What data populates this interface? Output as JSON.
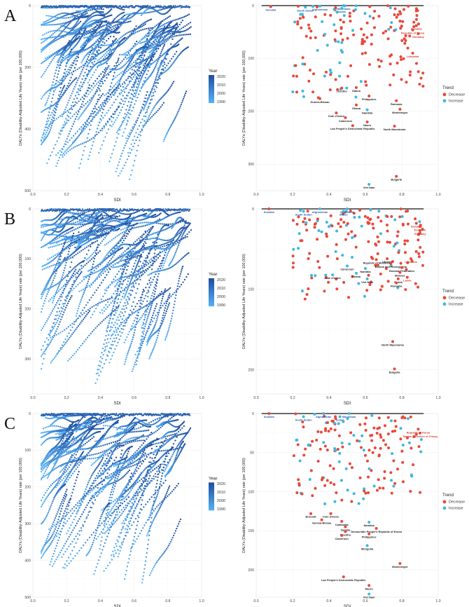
{
  "panels": [
    {
      "letter": "A",
      "left": {
        "ylim": [
          600,
          0
        ],
        "xlim": [
          0,
          1
        ],
        "yticks": [
          "0",
          "200",
          "400",
          "600"
        ],
        "xticks": [
          "0.0",
          "0.2",
          "0.4",
          "0.6",
          "0.8",
          "1.0"
        ]
      },
      "right": {
        "ylim": [
          350,
          0
        ],
        "xlim": [
          0,
          1
        ],
        "yticks": [
          "0",
          "100",
          "200",
          "300"
        ],
        "xticks": [
          "0.0",
          "0.2",
          "0.4",
          "0.6",
          "0.8",
          "1.0"
        ],
        "labels": [
          {
            "text": "Mauritania",
            "x": 0.48,
            "y": -1,
            "trend": "Increase"
          },
          {
            "text": "Afghanistan",
            "x": 0.35,
            "y": 1,
            "trend": "Increase"
          },
          {
            "text": "Somalia",
            "x": 0.08,
            "y": 2,
            "trend": "Decrease"
          },
          {
            "text": "South Sudan",
            "x": 0.27,
            "y": 3,
            "trend": "Increase"
          },
          {
            "text": "Sudan",
            "x": 0.47,
            "y": 5,
            "trend": "Increase"
          },
          {
            "text": "Slovakia",
            "x": 0.88,
            "y": 38,
            "trend": "Decrease"
          },
          {
            "text": "Republic of Korea",
            "x": 0.86,
            "y": 46,
            "trend": "Decrease"
          },
          {
            "text": "Germany",
            "x": 0.89,
            "y": 53,
            "trend": "Decrease"
          },
          {
            "text": "Lithuania",
            "x": 0.86,
            "y": 90,
            "trend": "Decrease"
          },
          {
            "text": "Lesotho",
            "x": 0.47,
            "y": 156,
            "trend": "Decrease"
          },
          {
            "text": "Gabon",
            "x": 0.55,
            "y": 155,
            "trend": "Decrease"
          },
          {
            "text": "Philippines",
            "x": 0.62,
            "y": 171,
            "trend": "Decrease"
          },
          {
            "text": "Guinea-Bissau",
            "x": 0.35,
            "y": 176,
            "trend": "Decrease"
          },
          {
            "text": "Romania",
            "x": 0.77,
            "y": 180,
            "trend": "Decrease"
          },
          {
            "text": "Ghana",
            "x": 0.55,
            "y": 188,
            "trend": "Decrease"
          },
          {
            "text": "Namibia",
            "x": 0.61,
            "y": 197,
            "trend": "Increase"
          },
          {
            "text": "Montenegro",
            "x": 0.79,
            "y": 196,
            "trend": "Decrease"
          },
          {
            "text": "Cote d'Ivoire",
            "x": 0.44,
            "y": 203,
            "trend": "Decrease"
          },
          {
            "text": "Cameroon",
            "x": 0.49,
            "y": 212,
            "trend": "Decrease"
          },
          {
            "text": "Nauru",
            "x": 0.61,
            "y": 220,
            "trend": "Decrease"
          },
          {
            "text": "Lao People's Democratic Republic",
            "x": 0.53,
            "y": 227,
            "trend": "Decrease"
          },
          {
            "text": "North Macedonia",
            "x": 0.76,
            "y": 228,
            "trend": "Decrease"
          },
          {
            "text": "Bulgaria",
            "x": 0.77,
            "y": 323,
            "trend": "Decrease"
          },
          {
            "text": "Viet Nam",
            "x": 0.62,
            "y": 338,
            "trend": "Increase"
          }
        ]
      }
    },
    {
      "letter": "B",
      "left": {
        "ylim": [
          370,
          0
        ],
        "xlim": [
          0,
          1
        ],
        "yticks": [
          "0",
          "100",
          "200",
          "300"
        ],
        "xticks": [
          "0.0",
          "0.2",
          "0.4",
          "0.6",
          "0.8",
          "1.0"
        ]
      },
      "right": {
        "ylim": [
          230,
          0
        ],
        "xlim": [
          0,
          1
        ],
        "yticks": [
          "0",
          "100",
          "200"
        ],
        "xticks": [
          "0.0",
          "0.2",
          "0.4",
          "0.6",
          "0.8",
          "1.0"
        ],
        "labels": [
          {
            "text": "Somalia",
            "x": 0.07,
            "y": -2,
            "trend": "Decrease"
          },
          {
            "text": "Afghanistan",
            "x": 0.35,
            "y": -1,
            "trend": "Increase"
          },
          {
            "text": "Mauritania",
            "x": 0.5,
            "y": -2,
            "trend": "Increase"
          },
          {
            "text": "South Sudan",
            "x": 0.26,
            "y": 3,
            "trend": "Increase"
          },
          {
            "text": "Sudan",
            "x": 0.48,
            "y": 3,
            "trend": "Increase"
          },
          {
            "text": "Slovakia",
            "x": 0.88,
            "y": 18,
            "trend": "Decrease"
          },
          {
            "text": "Denmark",
            "x": 0.9,
            "y": 22,
            "trend": "Decrease"
          },
          {
            "text": "Germany",
            "x": 0.9,
            "y": 27,
            "trend": "Decrease"
          },
          {
            "text": "Republic of Moldova",
            "x": 0.66,
            "y": 63,
            "trend": "Decrease"
          },
          {
            "text": "Ukraine",
            "x": 0.72,
            "y": 62,
            "trend": "Decrease"
          },
          {
            "text": "Lithuania",
            "x": 0.85,
            "y": 62,
            "trend": "Decrease"
          },
          {
            "text": "Bosnia and Herzegovina",
            "x": 0.74,
            "y": 68,
            "trend": "Decrease"
          },
          {
            "text": "Cameroon",
            "x": 0.5,
            "y": 71,
            "trend": "Increase"
          },
          {
            "text": "Namibia",
            "x": 0.6,
            "y": 74,
            "trend": "Increase"
          },
          {
            "text": "Russian Federation",
            "x": 0.8,
            "y": 73,
            "trend": "Decrease"
          },
          {
            "text": "Belarus",
            "x": 0.79,
            "y": 79,
            "trend": "Decrease"
          },
          {
            "text": "Ghana",
            "x": 0.55,
            "y": 80,
            "trend": "Increase"
          },
          {
            "text": "Cote d'Ivoire",
            "x": 0.42,
            "y": 82,
            "trend": "Increase"
          },
          {
            "text": "Latvia",
            "x": 0.83,
            "y": 85,
            "trend": "Decrease"
          },
          {
            "text": "Viet Nam",
            "x": 0.61,
            "y": 87,
            "trend": "Increase"
          },
          {
            "text": "Serbia",
            "x": 0.78,
            "y": 87,
            "trend": "Decrease"
          },
          {
            "text": "Romania",
            "x": 0.77,
            "y": 92,
            "trend": "Decrease"
          },
          {
            "text": "North Macedonia",
            "x": 0.75,
            "y": 165,
            "trend": "Decrease"
          },
          {
            "text": "Bulgaria",
            "x": 0.76,
            "y": 199,
            "trend": "Decrease"
          }
        ]
      }
    },
    {
      "letter": "C",
      "left": {
        "ylim": [
          500,
          0
        ],
        "xlim": [
          0,
          1
        ],
        "yticks": [
          "0",
          "100",
          "200",
          "300",
          "400",
          "500"
        ],
        "xticks": [
          "0.0",
          "0.2",
          "0.4",
          "0.6",
          "0.8",
          "1.0"
        ]
      },
      "right": {
        "ylim": [
          235,
          0
        ],
        "xlim": [
          0,
          1
        ],
        "yticks": [
          "0",
          "50",
          "100",
          "150",
          "200"
        ],
        "xticks": [
          "0.0",
          "0.2",
          "0.4",
          "0.6",
          "0.8",
          "1.0"
        ],
        "labels": [
          {
            "text": "Somalia",
            "x": 0.07,
            "y": -1,
            "trend": "Decrease"
          },
          {
            "text": "Afghanistan",
            "x": 0.37,
            "y": 0,
            "trend": "Increase"
          },
          {
            "text": "Mauritania",
            "x": 0.51,
            "y": -1,
            "trend": "Increase"
          },
          {
            "text": "South Sudan",
            "x": 0.26,
            "y": 4,
            "trend": "Increase"
          },
          {
            "text": "Sudan",
            "x": 0.46,
            "y": 4,
            "trend": "Increase"
          },
          {
            "text": "Republic of Korea",
            "x": 0.89,
            "y": 20,
            "trend": "Decrease"
          },
          {
            "text": "Taiwan (Province of China)",
            "x": 0.9,
            "y": 25,
            "trend": "Decrease"
          },
          {
            "text": "Burundi",
            "x": 0.3,
            "y": 128,
            "trend": "Decrease"
          },
          {
            "text": "Cote d'Ivoire",
            "x": 0.41,
            "y": 128,
            "trend": "Decrease"
          },
          {
            "text": "Guinea-Bissau",
            "x": 0.36,
            "y": 136,
            "trend": "Decrease"
          },
          {
            "text": "Cambodia",
            "x": 0.47,
            "y": 138,
            "trend": "Decrease"
          },
          {
            "text": "Namibia",
            "x": 0.62,
            "y": 139,
            "trend": "Increase"
          },
          {
            "text": "Zambia",
            "x": 0.49,
            "y": 145,
            "trend": "Decrease"
          },
          {
            "text": "Democratic People's Republic of Korea",
            "x": 0.66,
            "y": 147,
            "trend": "Decrease"
          },
          {
            "text": "Lesotho",
            "x": 0.49,
            "y": 151,
            "trend": "Decrease"
          },
          {
            "text": "Philippines",
            "x": 0.62,
            "y": 154,
            "trend": "Decrease"
          },
          {
            "text": "Cameroon",
            "x": 0.47,
            "y": 156,
            "trend": "Decrease"
          },
          {
            "text": "Mongolia",
            "x": 0.61,
            "y": 169,
            "trend": "Increase"
          },
          {
            "text": "Montenegro",
            "x": 0.79,
            "y": 192,
            "trend": "Decrease"
          },
          {
            "text": "Lao People's Democratic Republic",
            "x": 0.48,
            "y": 209,
            "trend": "Decrease"
          },
          {
            "text": "Nauru",
            "x": 0.62,
            "y": 220,
            "trend": "Decrease"
          },
          {
            "text": "Viet Nam",
            "x": 0.62,
            "y": 231,
            "trend": "Increase"
          }
        ]
      }
    }
  ],
  "common": {
    "xlabel": "SDI",
    "ylabel": "DALYs (Disability-Adjusted Life Years) rate (per 100,000)",
    "year_legend": {
      "title": "Year",
      "ticks": [
        "2020",
        "2010",
        "2000",
        "1990"
      ]
    },
    "trend_legend": {
      "title": "Trend",
      "items": [
        "Decrease",
        "Increase"
      ]
    }
  },
  "colors": {
    "decrease": "#e8483a",
    "increase": "#3db9e0",
    "year_dark": "#1f4e9e",
    "year_light": "#56b1f7",
    "grid": "#ebebeb",
    "label_blue": "#2c5fb0",
    "label_red": "#d33b2c"
  },
  "chart_data": [
    {
      "type": "scatter",
      "panel": "A-left",
      "xlabel": "SDI",
      "ylabel": "DALYs (Disability-Adjusted Life Years) rate (per 100,000)",
      "xlim": [
        0,
        1
      ],
      "ylim": [
        600,
        0
      ],
      "legend": "right",
      "color_scale": {
        "title": "Year",
        "range": [
          1990,
          2021
        ]
      },
      "summary": {
        "x": [
          0.05,
          0.95
        ],
        "y": [
          0,
          590
        ]
      }
    },
    {
      "type": "scatter",
      "panel": "A-right",
      "xlabel": "SDI",
      "ylabel": "DALYs (Disability-Adjusted Life Years) rate (per 100,000)",
      "xlim": [
        0,
        1
      ],
      "ylim": [
        350,
        0
      ],
      "series": [
        {
          "name": "Decrease"
        },
        {
          "name": "Increase"
        }
      ]
    },
    {
      "type": "scatter",
      "panel": "B-left",
      "xlabel": "SDI",
      "ylabel": "DALYs (Disability-Adjusted Life Years) rate (per 100,000)",
      "xlim": [
        0,
        1
      ],
      "ylim": [
        370,
        0
      ],
      "color_scale": {
        "title": "Year",
        "range": [
          1990,
          2021
        ]
      },
      "summary": {
        "x": [
          0.05,
          0.95
        ],
        "y": [
          0,
          365
        ]
      }
    },
    {
      "type": "scatter",
      "panel": "B-right",
      "xlabel": "SDI",
      "ylabel": "DALYs (Disability-Adjusted Life Years) rate (per 100,000)",
      "xlim": [
        0,
        1
      ],
      "ylim": [
        230,
        0
      ],
      "series": [
        {
          "name": "Decrease"
        },
        {
          "name": "Increase"
        }
      ]
    },
    {
      "type": "scatter",
      "panel": "C-left",
      "xlabel": "SDI",
      "ylabel": "DALYs (Disability-Adjusted Life Years) rate (per 100,000)",
      "xlim": [
        0,
        1
      ],
      "ylim": [
        500,
        0
      ],
      "color_scale": {
        "title": "Year",
        "range": [
          1990,
          2021
        ]
      },
      "summary": {
        "x": [
          0.05,
          0.95
        ],
        "y": [
          0,
          490
        ]
      }
    },
    {
      "type": "scatter",
      "panel": "C-right",
      "xlabel": "SDI",
      "ylabel": "DALYs (Disability-Adjusted Life Years) rate (per 100,000)",
      "xlim": [
        0,
        1
      ],
      "ylim": [
        235,
        0
      ],
      "series": [
        {
          "name": "Decrease"
        },
        {
          "name": "Increase"
        }
      ]
    }
  ]
}
